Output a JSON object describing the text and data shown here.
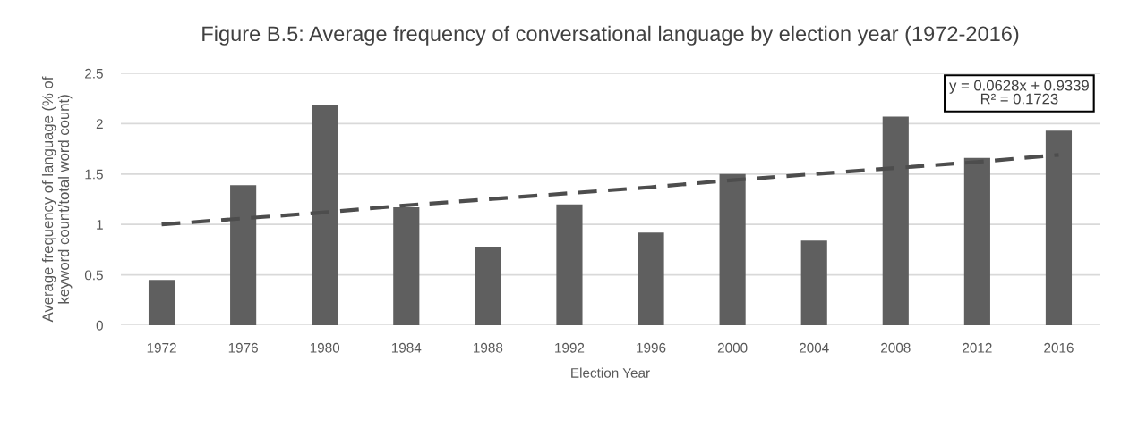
{
  "chart_data": {
    "type": "bar",
    "title": "Figure B.5: Average frequency of conversational language by election year (1972-2016)",
    "xlabel": "Election Year",
    "ylabel": "Average frequency of language (% of\nkeyword count/total word count)",
    "categories": [
      "1972",
      "1976",
      "1980",
      "1984",
      "1988",
      "1992",
      "1996",
      "2000",
      "2004",
      "2008",
      "2012",
      "2016"
    ],
    "series": [
      {
        "color": "#5f5f5f",
        "values": [
          0.45,
          1.39,
          2.18,
          1.17,
          0.78,
          1.2,
          0.92,
          1.5,
          0.84,
          2.07,
          1.66,
          1.93
        ]
      },
      {
        "type": "line",
        "color": "#4d4d4d",
        "line_style": "dashed",
        "values": [
          1.0,
          1.06,
          1.12,
          1.19,
          1.25,
          1.31,
          1.37,
          1.44,
          1.5,
          1.56,
          1.62,
          1.69
        ]
      }
    ],
    "ylim": [
      0,
      2.5
    ],
    "yticks": [
      0,
      0.5,
      1,
      1.5,
      2,
      2.5
    ],
    "grid": "y",
    "annotations": [
      "y = 0.0628x + 0.9339",
      "R² = 0.1723"
    ]
  }
}
